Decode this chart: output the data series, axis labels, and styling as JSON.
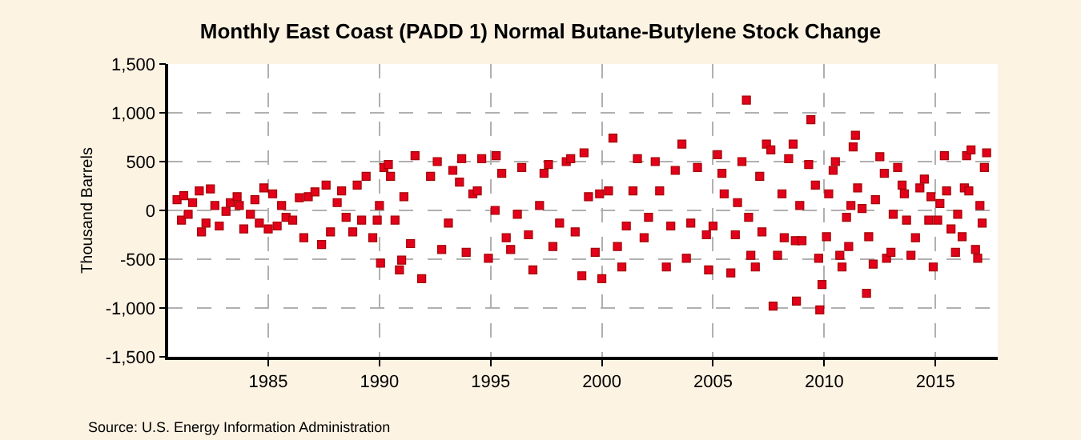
{
  "chart_data": {
    "type": "scatter",
    "title": "Monthly East Coast (PADD 1) Normal Butane-Butylene Stock Change",
    "ylabel": "Thousand Barrels",
    "annotations": [
      "Source: U.S. Energy Information Administration"
    ],
    "marker": "square",
    "grid": true,
    "xlim": [
      1980.5,
      2017.8
    ],
    "xticks": [
      1985,
      1990,
      1995,
      2000,
      2005,
      2010,
      2015
    ],
    "ylim": [
      -1500,
      1500
    ],
    "yticks": [
      {
        "value": -1500,
        "label": "-1,500"
      },
      {
        "value": -1000,
        "label": "-1,000"
      },
      -500,
      0,
      500,
      {
        "value": 1000,
        "label": "1,000"
      },
      {
        "value": 1500,
        "label": "1,500"
      }
    ],
    "series": [
      {
        "color": "#e3001b",
        "x": [
          1980.9,
          1981.1,
          1981.2,
          1981.4,
          1981.6,
          1981.9,
          1982.0,
          1982.2,
          1982.4,
          1982.6,
          1982.8,
          1983.1,
          1983.3,
          1983.6,
          1983.7,
          1983.9,
          1984.2,
          1984.4,
          1984.6,
          1984.8,
          1985.0,
          1985.2,
          1985.4,
          1985.6,
          1985.8,
          1986.1,
          1986.4,
          1986.6,
          1986.8,
          1987.1,
          1987.4,
          1987.6,
          1987.8,
          1988.1,
          1988.3,
          1988.5,
          1988.8,
          1989.0,
          1989.2,
          1989.4,
          1989.7,
          1989.9,
          1990.0,
          1990.05,
          1990.2,
          1990.4,
          1990.5,
          1990.7,
          1990.9,
          1991.0,
          1991.1,
          1991.4,
          1991.6,
          1991.9,
          1992.3,
          1992.6,
          1992.8,
          1993.1,
          1993.3,
          1993.6,
          1993.7,
          1993.9,
          1994.2,
          1994.4,
          1994.6,
          1994.9,
          1995.2,
          1995.25,
          1995.5,
          1995.7,
          1995.9,
          1996.2,
          1996.4,
          1996.7,
          1996.9,
          1997.2,
          1997.4,
          1997.6,
          1997.8,
          1998.1,
          1998.4,
          1998.6,
          1998.8,
          1999.1,
          1999.2,
          1999.4,
          1999.7,
          1999.9,
          2000.0,
          2000.3,
          2000.5,
          2000.7,
          2000.9,
          2001.1,
          2001.4,
          2001.6,
          2001.9,
          2002.1,
          2002.4,
          2002.6,
          2002.9,
          2003.1,
          2003.3,
          2003.6,
          2003.8,
          2004.0,
          2004.3,
          2004.7,
          2004.8,
          2005.0,
          2005.2,
          2005.4,
          2005.5,
          2005.8,
          2006.0,
          2006.1,
          2006.3,
          2006.5,
          2006.6,
          2006.7,
          2006.9,
          2007.1,
          2007.2,
          2007.4,
          2007.6,
          2007.7,
          2007.9,
          2008.1,
          2008.2,
          2008.4,
          2008.6,
          2008.7,
          2008.75,
          2008.9,
          2009.0,
          2009.3,
          2009.4,
          2009.6,
          2009.75,
          2009.8,
          2009.9,
          2010.1,
          2010.2,
          2010.4,
          2010.5,
          2010.7,
          2010.8,
          2011.0,
          2011.1,
          2011.2,
          2011.3,
          2011.4,
          2011.5,
          2011.7,
          2011.9,
          2012.0,
          2012.2,
          2012.3,
          2012.5,
          2012.7,
          2012.8,
          2013.0,
          2013.1,
          2013.3,
          2013.5,
          2013.6,
          2013.7,
          2013.9,
          2014.1,
          2014.3,
          2014.5,
          2014.7,
          2014.8,
          2014.9,
          2015.1,
          2015.2,
          2015.4,
          2015.5,
          2015.7,
          2015.9,
          2016.0,
          2016.2,
          2016.3,
          2016.4,
          2016.5,
          2016.6,
          2016.8,
          2016.9,
          2017.0,
          2017.1,
          2017.2,
          2017.3
        ],
        "values": [
          110,
          -100,
          150,
          -40,
          80,
          200,
          -220,
          -130,
          220,
          50,
          -160,
          -10,
          80,
          140,
          50,
          -190,
          -40,
          110,
          -130,
          230,
          -190,
          170,
          -160,
          50,
          -70,
          -100,
          130,
          -280,
          140,
          190,
          -350,
          260,
          -220,
          80,
          200,
          -70,
          -220,
          260,
          -100,
          350,
          -280,
          -100,
          50,
          -540,
          440,
          470,
          350,
          -100,
          -610,
          -510,
          140,
          -340,
          560,
          -700,
          350,
          500,
          -400,
          -130,
          410,
          290,
          530,
          -430,
          170,
          200,
          530,
          -490,
          0,
          560,
          380,
          -280,
          -400,
          -40,
          440,
          -250,
          -610,
          50,
          380,
          470,
          -370,
          -130,
          500,
          530,
          -220,
          -670,
          590,
          140,
          -430,
          170,
          -700,
          200,
          740,
          -370,
          -580,
          -160,
          200,
          530,
          -280,
          -70,
          500,
          200,
          -580,
          -160,
          410,
          680,
          -490,
          -130,
          440,
          -250,
          -610,
          -160,
          570,
          380,
          170,
          -640,
          -250,
          80,
          500,
          1130,
          -70,
          -460,
          -580,
          350,
          -220,
          680,
          620,
          -980,
          -460,
          170,
          -280,
          530,
          680,
          -310,
          -930,
          50,
          -310,
          470,
          930,
          260,
          -490,
          -1020,
          -760,
          -270,
          170,
          410,
          500,
          -460,
          -580,
          -70,
          -370,
          50,
          650,
          770,
          230,
          20,
          -850,
          -270,
          -550,
          110,
          550,
          380,
          -490,
          -430,
          -40,
          440,
          260,
          170,
          -100,
          -460,
          -280,
          230,
          320,
          -100,
          140,
          -580,
          -100,
          70,
          560,
          200,
          -190,
          -430,
          -40,
          -270,
          230,
          560,
          200,
          620,
          -400,
          -490,
          50,
          -130,
          440,
          590
        ]
      }
    ]
  }
}
